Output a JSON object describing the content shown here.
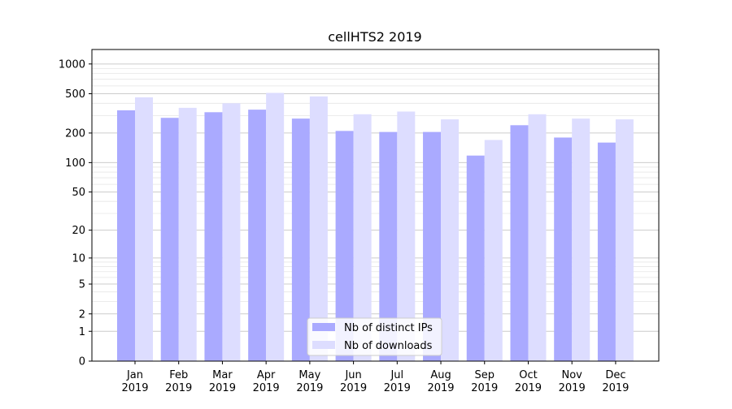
{
  "chart_data": {
    "type": "bar",
    "title": "cellHTS2 2019",
    "xlabel": "",
    "ylabel": "",
    "y_scale": "log(1+y)",
    "ylim": [
      0,
      1400
    ],
    "y_ticks": [
      0,
      1,
      2,
      5,
      10,
      20,
      50,
      100,
      200,
      500,
      1000
    ],
    "y_tick_labels": [
      "0",
      "1",
      "2",
      "5",
      "10",
      "20",
      "50",
      "100",
      "200",
      "500",
      "1000"
    ],
    "grid": true,
    "legend_position": "bottom-center",
    "categories": [
      [
        "Jan",
        "2019"
      ],
      [
        "Feb",
        "2019"
      ],
      [
        "Mar",
        "2019"
      ],
      [
        "Apr",
        "2019"
      ],
      [
        "May",
        "2019"
      ],
      [
        "Jun",
        "2019"
      ],
      [
        "Jul",
        "2019"
      ],
      [
        "Aug",
        "2019"
      ],
      [
        "Sep",
        "2019"
      ],
      [
        "Oct",
        "2019"
      ],
      [
        "Nov",
        "2019"
      ],
      [
        "Dec",
        "2019"
      ]
    ],
    "series": [
      {
        "name": "Nb of distinct IPs",
        "color": "#aaaaff",
        "values": [
          340,
          285,
          325,
          345,
          280,
          210,
          205,
          205,
          118,
          240,
          180,
          160
        ]
      },
      {
        "name": "Nb of downloads",
        "color": "#ddddff",
        "values": [
          460,
          360,
          400,
          510,
          470,
          310,
          330,
          275,
          170,
          310,
          280,
          275
        ]
      }
    ]
  }
}
